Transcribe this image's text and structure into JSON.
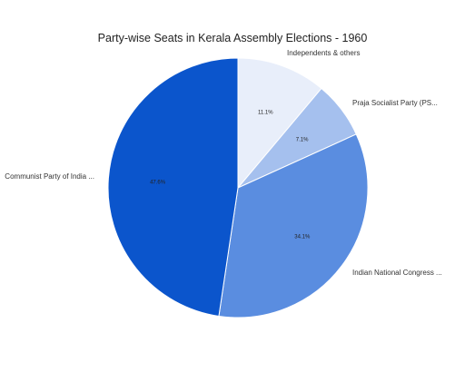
{
  "chart_data": {
    "type": "pie",
    "title": "Party-wise Seats in Kerala Assembly Elections - 1960",
    "slices": [
      {
        "label": "Independents & others",
        "value": 11.1,
        "pct_label": "11.1%",
        "color": "#e8eefa"
      },
      {
        "label": "Praja Socialist Party (PS...",
        "value": 7.1,
        "pct_label": "7.1%",
        "color": "#a5c0ee"
      },
      {
        "label": "Indian National Congress ...",
        "value": 34.1,
        "pct_label": "34.1%",
        "color": "#5a8de0"
      },
      {
        "label": "Communist Party of India ...",
        "value": 47.6,
        "pct_label": "47.6%",
        "color": "#0b55cc"
      }
    ]
  }
}
